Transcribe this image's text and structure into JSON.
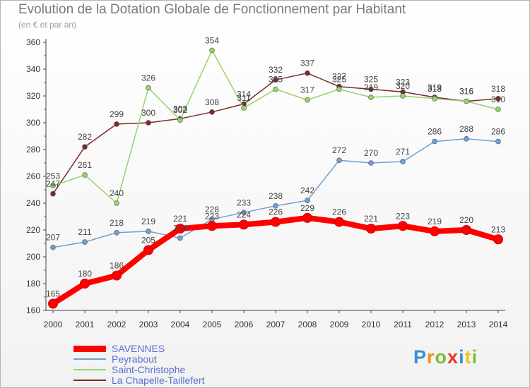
{
  "header": {
    "title": "Evolution de la Dotation Globale de Fonctionnement par Habitant",
    "subtitle": "(en € et par an)"
  },
  "chart_data": {
    "type": "line",
    "categories": [
      "2000",
      "2001",
      "2002",
      "2003",
      "2004",
      "2005",
      "2006",
      "2007",
      "2008",
      "2009",
      "2010",
      "2011",
      "2012",
      "2013",
      "2014"
    ],
    "ylim": [
      160,
      360
    ],
    "yticks": [
      160,
      180,
      200,
      220,
      240,
      260,
      280,
      300,
      320,
      340,
      360
    ],
    "grid": false,
    "legend": "bottom-left",
    "series": [
      {
        "name": "SAVENNES",
        "color": "#ff0000",
        "values": [
          165,
          180,
          186,
          205,
          221,
          223,
          224,
          226,
          229,
          226,
          221,
          223,
          219,
          220,
          213
        ]
      },
      {
        "name": "Peyrabout",
        "color": "#6fa0d2",
        "values": [
          207,
          211,
          218,
          219,
          214,
          228,
          233,
          238,
          242,
          272,
          270,
          271,
          286,
          288,
          286
        ]
      },
      {
        "name": "Saint-Christophe",
        "color": "#93d46b",
        "values": [
          253,
          261,
          240,
          326,
          302,
          354,
          311,
          325,
          317,
          325,
          319,
          320,
          318,
          316,
          310
        ]
      },
      {
        "name": "La Chapelle-Taillefert",
        "color": "#7b2a2a",
        "values": [
          247,
          282,
          299,
          300,
          303,
          308,
          314,
          332,
          337,
          327,
          325,
          323,
          319,
          316,
          318
        ]
      }
    ]
  },
  "logo": {
    "letters": [
      "P",
      "r",
      "o",
      "x",
      "i",
      "t",
      "i"
    ],
    "colors": [
      "#3a8fd6",
      "#f28c1e",
      "#7bbf3a",
      "#e8342a",
      "#3a8fd6",
      "#f2c31e",
      "#7bbf3a"
    ]
  }
}
